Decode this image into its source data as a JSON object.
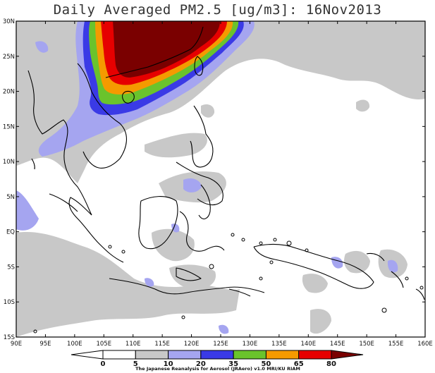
{
  "title": "Daily Averaged PM2.5 [ug/m3]: 16Nov2013",
  "lat_labels": [
    "30N",
    "25N",
    "20N",
    "15N",
    "10N",
    "5N",
    "EQ",
    "5S",
    "10S",
    "15S"
  ],
  "lon_labels": [
    "90E",
    "95E",
    "100E",
    "105E",
    "110E",
    "115E",
    "120E",
    "125E",
    "130E",
    "135E",
    "140E",
    "145E",
    "150E",
    "155E",
    "160E"
  ],
  "colorbar": {
    "levels": [
      "0",
      "5",
      "10",
      "20",
      "35",
      "50",
      "65",
      "80"
    ],
    "colors": [
      "#ffffff",
      "#ffffff",
      "#c8c8c8",
      "#a5a5f0",
      "#3a3ae6",
      "#6ac32c",
      "#f59a00",
      "#e60000",
      "#7a0000"
    ]
  },
  "credit": "The Japanese Reanalysis for Aerosol (JRAero) v1.0 MRI/KU RIAM"
}
